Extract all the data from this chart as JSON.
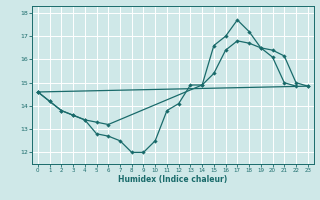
{
  "xlabel": "Humidex (Indice chaleur)",
  "bg_color": "#cfe8e8",
  "line_color": "#1a6b6b",
  "grid_color": "#ffffff",
  "line1_x": [
    0,
    1,
    2,
    3,
    4,
    5,
    6,
    7,
    8,
    9,
    10,
    11,
    12,
    13,
    14,
    15,
    16,
    17,
    18,
    19,
    20,
    21,
    22
  ],
  "line1_y": [
    14.6,
    14.2,
    13.8,
    13.6,
    13.4,
    12.8,
    12.7,
    12.5,
    12.0,
    12.0,
    12.5,
    13.8,
    14.1,
    14.9,
    14.9,
    16.6,
    17.0,
    17.7,
    17.2,
    16.5,
    16.1,
    15.0,
    14.85
  ],
  "line2_x": [
    0,
    23
  ],
  "line2_y": [
    14.6,
    14.85
  ],
  "line3_x": [
    0,
    1,
    2,
    3,
    4,
    5,
    6,
    14,
    15,
    16,
    17,
    18,
    19,
    20,
    21,
    22,
    23
  ],
  "line3_y": [
    14.6,
    14.2,
    13.8,
    13.6,
    13.4,
    13.3,
    13.2,
    14.9,
    15.4,
    16.4,
    16.8,
    16.7,
    16.5,
    16.4,
    16.15,
    15.0,
    14.85
  ],
  "ylim": [
    11.5,
    18.3
  ],
  "xlim": [
    -0.5,
    23.5
  ],
  "yticks": [
    12,
    13,
    14,
    15,
    16,
    17,
    18
  ],
  "xticks": [
    0,
    1,
    2,
    3,
    4,
    5,
    6,
    7,
    8,
    9,
    10,
    11,
    12,
    13,
    14,
    15,
    16,
    17,
    18,
    19,
    20,
    21,
    22,
    23
  ]
}
